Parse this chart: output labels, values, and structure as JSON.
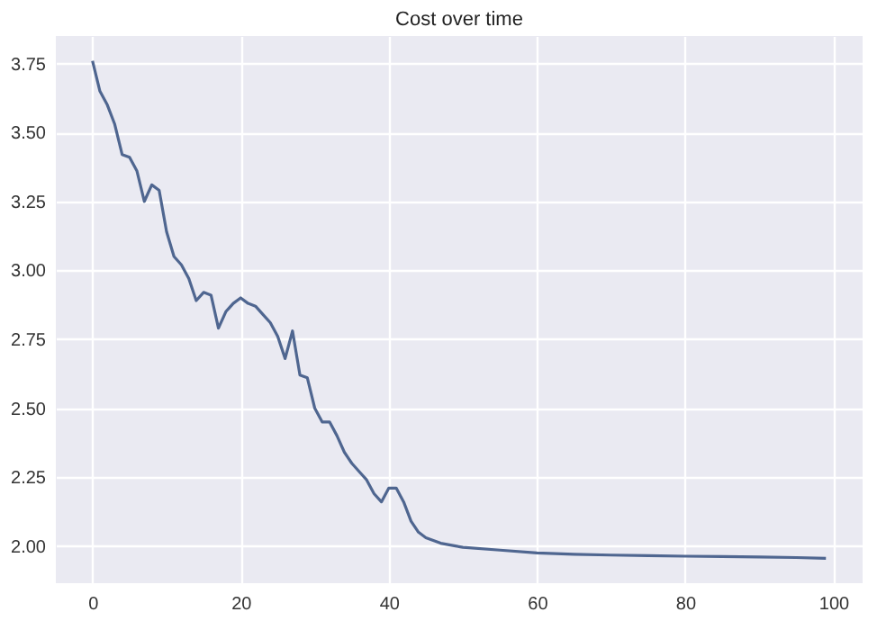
{
  "chart_data": {
    "type": "line",
    "title": "Cost over time",
    "x": [
      0,
      1,
      2,
      3,
      4,
      5,
      6,
      7,
      8,
      9,
      10,
      11,
      12,
      13,
      14,
      15,
      16,
      17,
      18,
      19,
      20,
      21,
      22,
      23,
      24,
      25,
      26,
      27,
      28,
      29,
      30,
      31,
      32,
      33,
      34,
      35,
      36,
      37,
      38,
      39,
      40,
      41,
      42,
      43,
      44,
      45,
      46,
      47,
      48,
      49,
      50,
      55,
      60,
      65,
      70,
      75,
      80,
      85,
      90,
      95,
      99
    ],
    "series": [
      {
        "color": "#4f6690",
        "values": [
          3.76,
          3.65,
          3.6,
          3.53,
          3.42,
          3.41,
          3.36,
          3.25,
          3.31,
          3.29,
          3.14,
          3.05,
          3.02,
          2.97,
          2.89,
          2.92,
          2.91,
          2.79,
          2.85,
          2.88,
          2.9,
          2.88,
          2.87,
          2.84,
          2.81,
          2.76,
          2.68,
          2.78,
          2.62,
          2.61,
          2.5,
          2.45,
          2.45,
          2.4,
          2.34,
          2.3,
          2.27,
          2.24,
          2.19,
          2.16,
          2.21,
          2.21,
          2.16,
          2.09,
          2.05,
          2.03,
          2.02,
          2.01,
          2.005,
          2.0,
          1.995,
          1.985,
          1.975,
          1.97,
          1.967,
          1.965,
          1.963,
          1.962,
          1.96,
          1.958,
          1.955
        ]
      }
    ],
    "xlim": [
      -4.95,
      103.95
    ],
    "xticks": [
      0,
      20,
      40,
      60,
      80,
      100
    ],
    "ylim": [
      1.865,
      3.85
    ],
    "yticks": [
      {
        "value": 2,
        "label": "2.00"
      },
      2.25,
      {
        "value": 2.5,
        "label": "2.50"
      },
      2.75,
      {
        "value": 3,
        "label": "3.00"
      },
      3.25,
      {
        "value": 3.5,
        "label": "3.50"
      },
      3.75
    ],
    "grid": true,
    "marker": "none",
    "line_style": "solid"
  }
}
